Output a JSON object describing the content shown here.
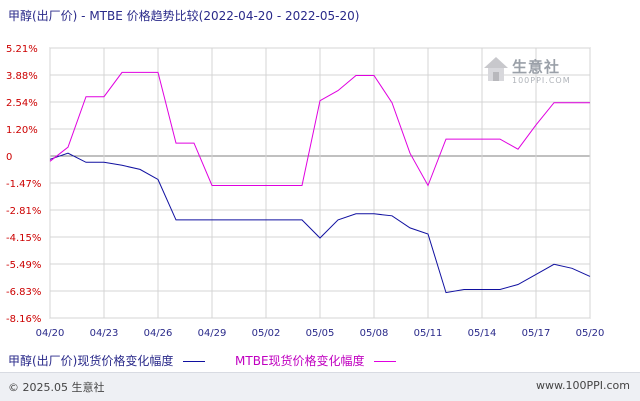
{
  "title": "甲醇(出厂价) - MTBE 价格趋势比较(2022-04-20 - 2022-05-20)",
  "watermark": {
    "name": "生意社",
    "url": "100PPI.COM",
    "logo_icon": "house-logo-icon"
  },
  "footer": {
    "copyright": "© 2025.05 生意社",
    "site": "www.100PPI.com"
  },
  "chart_data": {
    "type": "line",
    "title": "甲醇(出厂价) - MTBE 价格趋势比较(2022-04-20 - 2022-05-20)",
    "xlabel": "",
    "ylabel": "",
    "x_ticks": [
      "04/20",
      "04/23",
      "04/26",
      "04/29",
      "05/02",
      "05/05",
      "05/08",
      "05/11",
      "05/14",
      "05/17",
      "05/20"
    ],
    "y_ticks": [
      "5.21%",
      "3.88%",
      "2.54%",
      "1.20%",
      "0",
      "-1.47%",
      "-2.81%",
      "-4.15%",
      "-5.49%",
      "-6.83%",
      "-8.16%"
    ],
    "ylim": [
      -8.16,
      5.21
    ],
    "x_count": 31,
    "grid": true,
    "legend_position": "bottom",
    "series": [
      {
        "name": "甲醇(出厂价)现货价格变化幅度",
        "color": "#1010a0",
        "values": [
          -0.3,
          0.0,
          -0.45,
          -0.45,
          -0.6,
          -0.8,
          -1.3,
          -3.3,
          -3.3,
          -3.3,
          -3.3,
          -3.3,
          -3.3,
          -3.3,
          -3.3,
          -4.2,
          -3.3,
          -3.0,
          -3.0,
          -3.1,
          -3.7,
          -4.0,
          -6.9,
          -6.75,
          -6.75,
          -6.75,
          -6.5,
          -6.0,
          -5.5,
          -5.7,
          -6.1
        ]
      },
      {
        "name": "MTBE现货价格变化幅度",
        "color": "#e000e0",
        "values": [
          -0.4,
          0.3,
          2.8,
          2.8,
          4.0,
          4.0,
          4.0,
          0.5,
          0.5,
          -1.6,
          -1.6,
          -1.6,
          -1.6,
          -1.6,
          -1.6,
          2.6,
          3.1,
          3.85,
          3.85,
          2.5,
          0.0,
          -1.6,
          0.7,
          0.7,
          0.7,
          0.7,
          0.2,
          1.4,
          2.5,
          2.5,
          2.5
        ]
      }
    ]
  }
}
